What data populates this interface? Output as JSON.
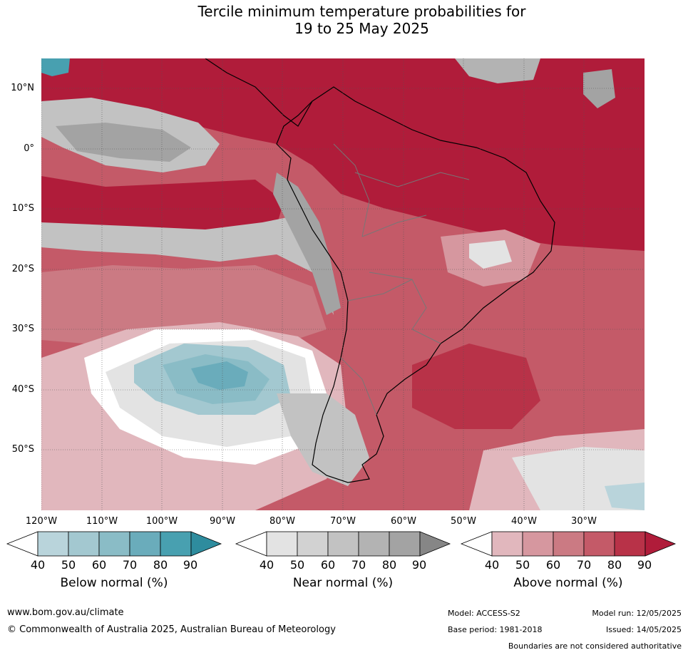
{
  "title_line1": "Tercile minimum temperature probabilities for",
  "title_line2": "19 to 25 May 2025",
  "lat_labels": [
    "10°N",
    "0°",
    "10°S",
    "20°S",
    "30°S",
    "40°S",
    "50°S"
  ],
  "lon_labels": [
    "120°W",
    "110°W",
    "100°W",
    "90°W",
    "80°W",
    "70°W",
    "60°W",
    "50°W",
    "40°W",
    "30°W"
  ],
  "colorbars": [
    {
      "title": "Below normal (%)",
      "ticks": [
        "40",
        "50",
        "60",
        "70",
        "80",
        "90"
      ],
      "colors": [
        "#ffffff",
        "#b9d4db",
        "#a3c8d0",
        "#8abcc6",
        "#6aacbb",
        "#48a0b0",
        "#2e8c9e"
      ]
    },
    {
      "title": "Near normal (%)",
      "ticks": [
        "40",
        "50",
        "60",
        "70",
        "80",
        "90"
      ],
      "colors": [
        "#ffffff",
        "#e3e3e3",
        "#d2d2d2",
        "#c2c2c2",
        "#b3b3b3",
        "#a3a3a3",
        "#868686"
      ]
    },
    {
      "title": "Above normal (%)",
      "ticks": [
        "40",
        "50",
        "60",
        "70",
        "80",
        "90"
      ],
      "colors": [
        "#ffffff",
        "#e1b7bd",
        "#d6979f",
        "#cb7a83",
        "#c45a68",
        "#b83248",
        "#b01c3a"
      ]
    }
  ],
  "footer": {
    "website": "www.bom.gov.au/climate",
    "copyright": "© Commonwealth of Australia 2025, Australian Bureau of Meteorology",
    "model": "Model: ACCESS-S2",
    "base_period": "Base period: 1981-2018",
    "model_run": "Model run: 12/05/2025",
    "issued": "Issued: 14/05/2025",
    "disclaimer": "Boundaries are not considered authoritative"
  }
}
